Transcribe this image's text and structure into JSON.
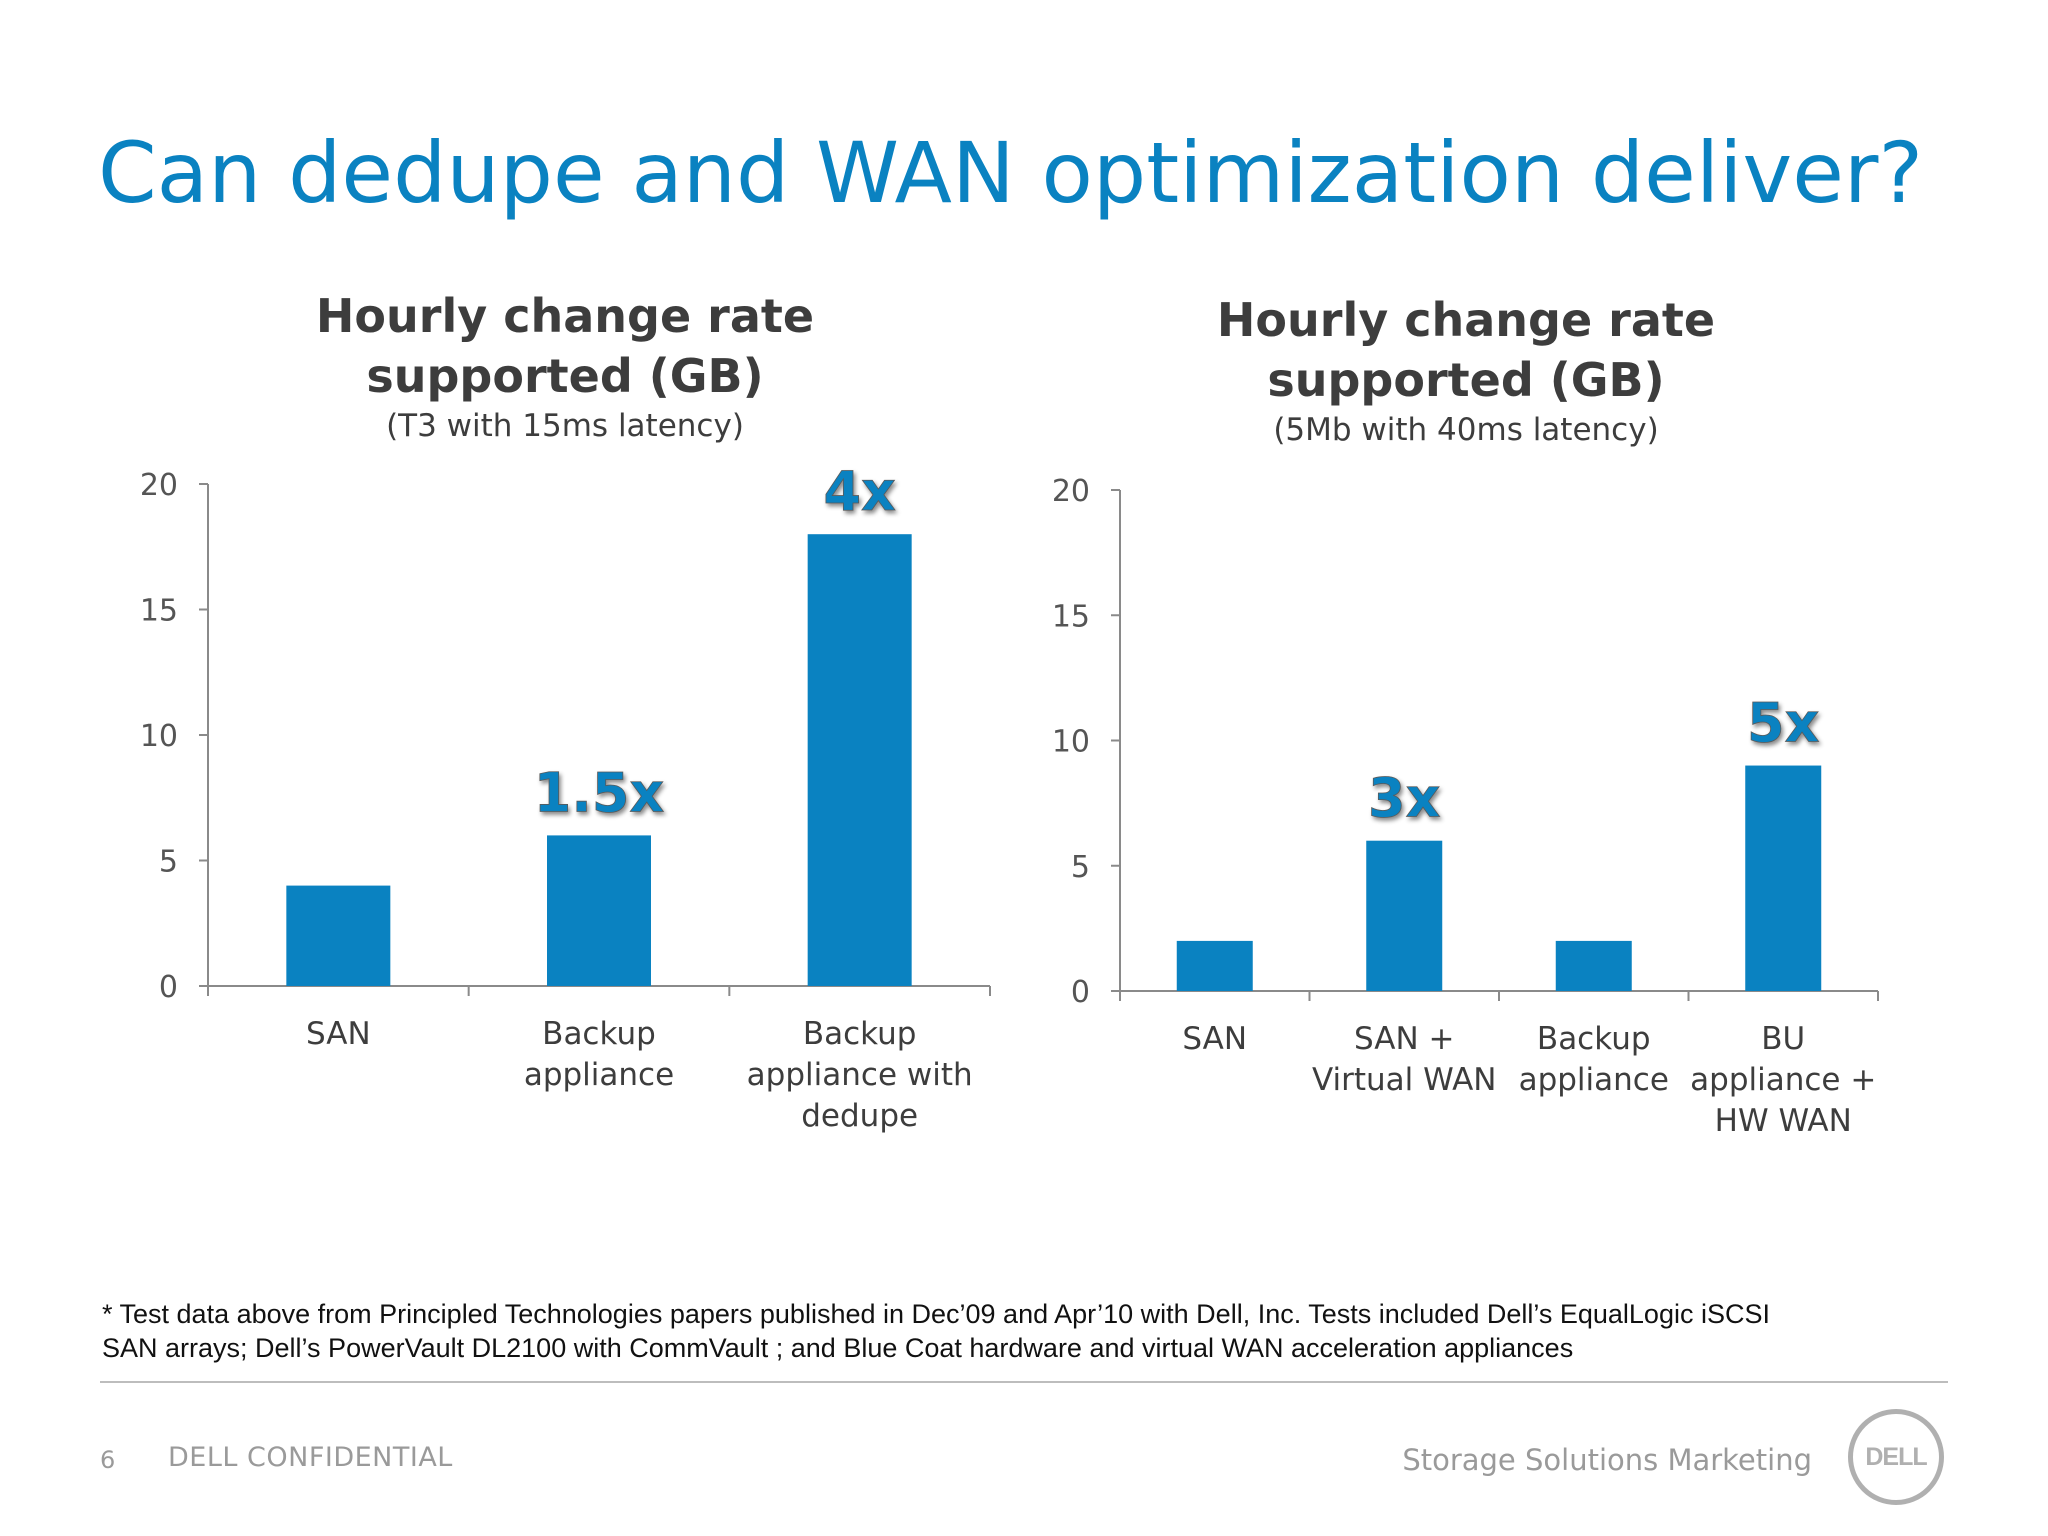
{
  "title": "Can dedupe and WAN optimization deliver?",
  "colors": {
    "accent": "#0a82c1",
    "bar": "#0a82c1",
    "text": "#3d3d3d"
  },
  "chart_data": [
    {
      "type": "bar",
      "title": "Hourly change rate supported (GB)",
      "title_lines": [
        "Hourly change rate",
        "supported (GB)"
      ],
      "subtitle": "(T3 with 15ms latency)",
      "categories": [
        "SAN",
        "Backup appliance",
        "Backup appliance with dedupe"
      ],
      "category_lines": [
        [
          "SAN"
        ],
        [
          "Backup",
          "appliance"
        ],
        [
          "Backup",
          "appliance with",
          "dedupe"
        ]
      ],
      "values": [
        4,
        6,
        18
      ],
      "ylim": [
        0,
        20
      ],
      "yticks": [
        "0",
        "5",
        "10",
        "15",
        "20"
      ],
      "annotations": [
        {
          "category": "Backup appliance",
          "text": "1.5x"
        },
        {
          "category": "Backup appliance with dedupe",
          "text": "4x"
        }
      ],
      "grid": false,
      "legend": "none",
      "xlabel": "",
      "ylabel": ""
    },
    {
      "type": "bar",
      "title": "Hourly change rate supported (GB)",
      "title_lines": [
        "Hourly change rate",
        "supported (GB)"
      ],
      "subtitle": "(5Mb with 40ms latency)",
      "categories": [
        "SAN",
        "SAN + Virtual WAN",
        "Backup appliance",
        "BU appliance + HW WAN"
      ],
      "category_lines": [
        [
          "SAN"
        ],
        [
          "SAN +",
          "Virtual WAN"
        ],
        [
          "Backup",
          "appliance"
        ],
        [
          "BU",
          "appliance +",
          "HW WAN"
        ]
      ],
      "values": [
        2,
        6,
        2,
        9
      ],
      "ylim": [
        0,
        20
      ],
      "yticks": [
        "0",
        "5",
        "10",
        "15",
        "20"
      ],
      "annotations": [
        {
          "category": "SAN + Virtual WAN",
          "text": "3x"
        },
        {
          "category": "BU appliance + HW WAN",
          "text": "5x"
        }
      ],
      "grid": false,
      "legend": "none",
      "xlabel": "",
      "ylabel": ""
    }
  ],
  "footnote": {
    "line1": "* Test data above from Principled Technologies papers published in Dec’09 and Apr’10 with Dell, Inc.  Tests included Dell’s EqualLogic iSCSI",
    "line2": "SAN arrays; Dell’s PowerVault DL2100 with CommVault ; and Blue Coat hardware and virtual WAN acceleration appliances"
  },
  "footer": {
    "page_number": "6",
    "confidential": "DELL CONFIDENTIAL",
    "marketing": "Storage Solutions Marketing",
    "logo_text": "DELL",
    "logo_icon": "dell-logo-icon"
  }
}
